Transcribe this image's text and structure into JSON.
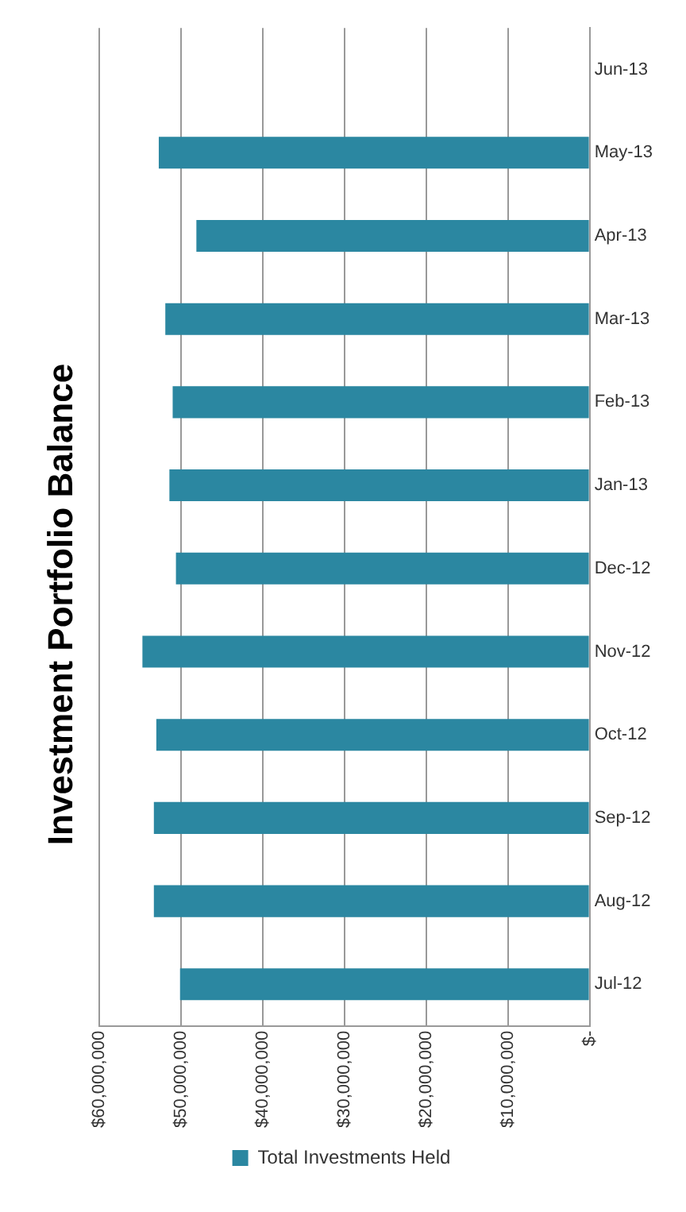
{
  "chart_data": {
    "type": "bar",
    "orientation": "horizontal",
    "title": "Investment Portfolio Balance",
    "categories": [
      "Jun-13",
      "May-13",
      "Apr-13",
      "Mar-13",
      "Feb-13",
      "Jan-13",
      "Dec-12",
      "Nov-12",
      "Oct-12",
      "Sep-12",
      "Aug-12",
      "Jul-12"
    ],
    "series": [
      {
        "name": "Total Investments Held",
        "color": "#2b87a1",
        "values": [
          null,
          52700000,
          48100000,
          51900000,
          51000000,
          51400000,
          50600000,
          54700000,
          53000000,
          53300000,
          53300000,
          50100000
        ]
      }
    ],
    "xlim": [
      60000000,
      0
    ],
    "xticks": [
      {
        "value": 0,
        "label": "$-"
      },
      {
        "value": 10000000,
        "label": "$10,000,000"
      },
      {
        "value": 20000000,
        "label": "$20,000,000"
      },
      {
        "value": 30000000,
        "label": "$30,000,000"
      },
      {
        "value": 40000000,
        "label": "$40,000,000"
      },
      {
        "value": 50000000,
        "label": "$50,000,000"
      },
      {
        "value": 60000000,
        "label": "$60,000,000"
      }
    ],
    "grid": "x",
    "legend": "bottom"
  }
}
